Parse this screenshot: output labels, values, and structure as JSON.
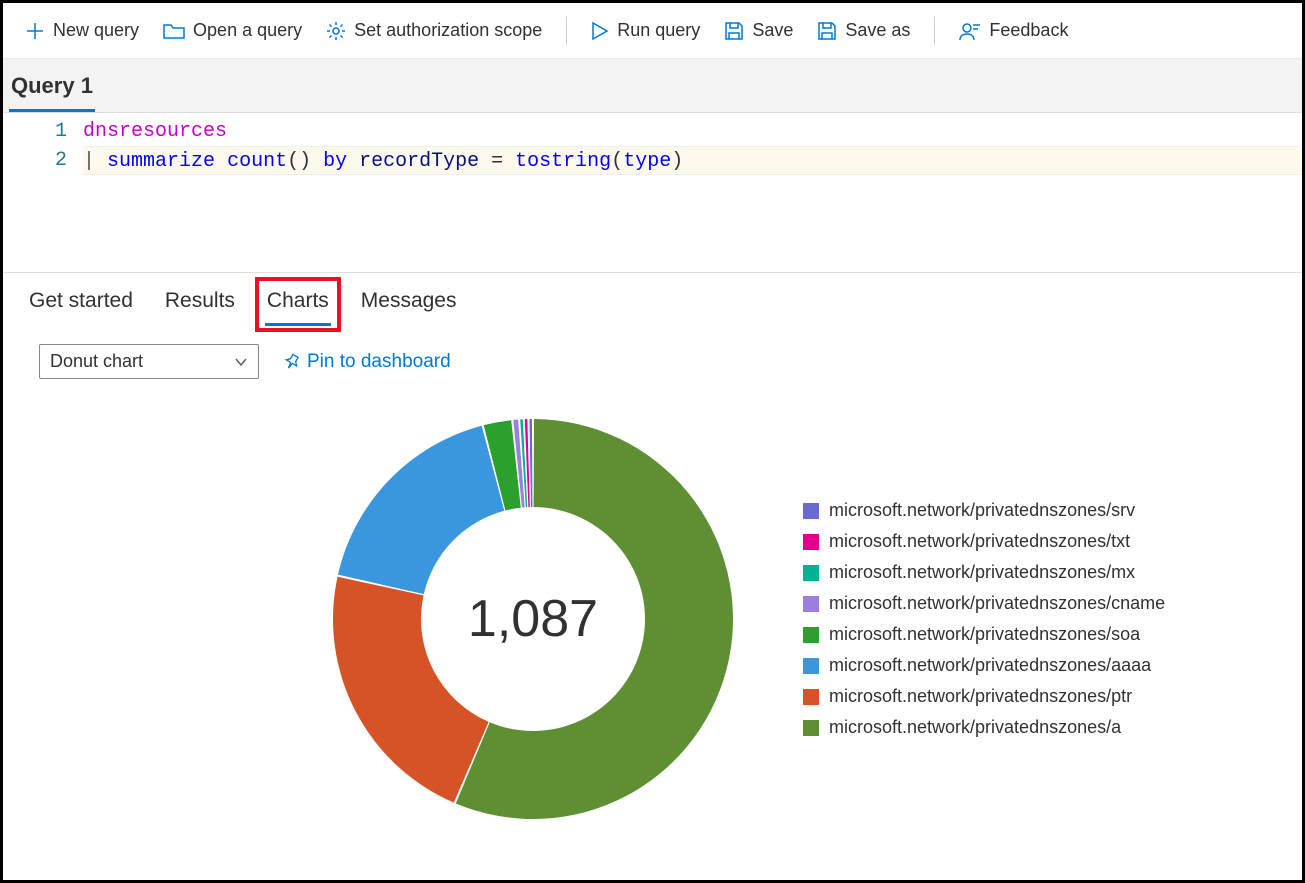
{
  "toolbar": {
    "new_query": "New query",
    "open_query": "Open a query",
    "set_scope": "Set authorization scope",
    "run_query": "Run query",
    "save": "Save",
    "save_as": "Save as",
    "feedback": "Feedback"
  },
  "query_tab": {
    "label": "Query 1"
  },
  "editor": {
    "lines": [
      {
        "n": 1,
        "kind": "table",
        "text": "dnsresources"
      },
      {
        "n": 2,
        "kind": "summarize"
      }
    ],
    "tokens": {
      "pipe": "| ",
      "summarize": "summarize",
      "count": "count",
      "parens": "() ",
      "by": "by",
      "ident": " recordType ",
      "eq": "= ",
      "tostring": "tostring",
      "lpar": "(",
      "type": "type",
      "rpar": ")"
    }
  },
  "result_tabs": {
    "get_started": "Get started",
    "results": "Results",
    "charts": "Charts",
    "messages": "Messages",
    "active": "charts"
  },
  "chart_controls": {
    "select_value": "Donut chart",
    "pin_label": "Pin to dashboard"
  },
  "donut": {
    "type": "donut",
    "center_label": "1,087",
    "total": 1087,
    "inner_radius": 112,
    "outer_radius": 200,
    "background_color": "#ffffff",
    "title_fontsize": 52,
    "slice_gap_color": "#ffffff",
    "slices": [
      {
        "label": "microsoft.network/privatednszones/srv",
        "value": 4,
        "color": "#6b69d6"
      },
      {
        "label": "microsoft.network/privatednszones/txt",
        "value": 4,
        "color": "#e3008c"
      },
      {
        "label": "microsoft.network/privatednszones/mx",
        "value": 4,
        "color": "#00b294"
      },
      {
        "label": "microsoft.network/privatednszones/cname",
        "value": 6,
        "color": "#9b7ede"
      },
      {
        "label": "microsoft.network/privatednszones/soa",
        "value": 26,
        "color": "#2ca02c"
      },
      {
        "label": "microsoft.network/privatednszones/aaaa",
        "value": 190,
        "color": "#3a96dd"
      },
      {
        "label": "microsoft.network/privatednszones/ptr",
        "value": 240,
        "color": "#d65328"
      },
      {
        "label": "microsoft.network/privatednszones/a",
        "value": 613,
        "color": "#5e8f33"
      }
    ],
    "legend_fontsize": 18
  }
}
